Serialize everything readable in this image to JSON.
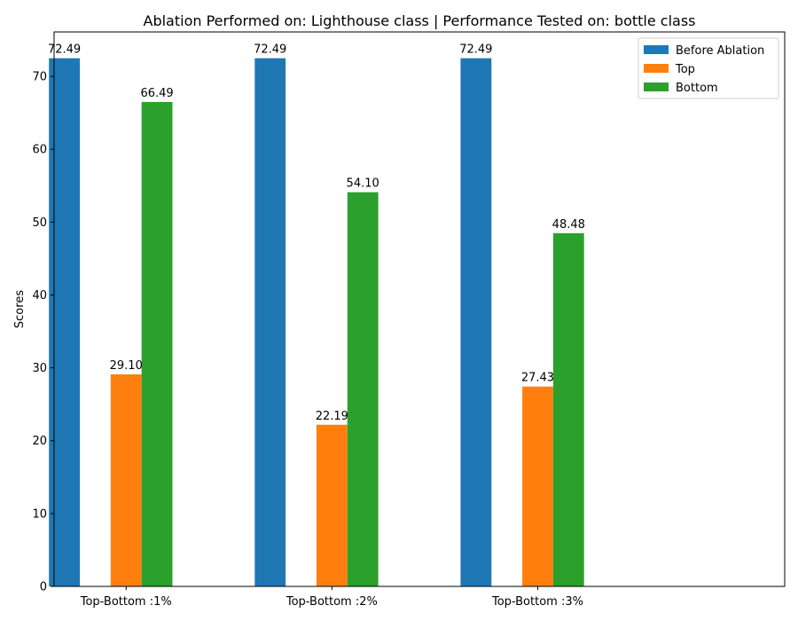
{
  "chart_data": {
    "type": "bar",
    "title": "Ablation Performed on: Lighthouse class | Performance Tested on: bottle class",
    "xlabel": "",
    "ylabel": "Scores",
    "categories": [
      "Top-Bottom :1%",
      "Top-Bottom :2%",
      "Top-Bottom :3%"
    ],
    "series": [
      {
        "name": "Before Ablation",
        "color": "#1f77b4",
        "values": [
          72.49,
          72.49,
          72.49
        ],
        "labels": [
          "72.49",
          "72.49",
          "72.49"
        ]
      },
      {
        "name": "Top",
        "color": "#ff7f0e",
        "values": [
          29.1,
          22.19,
          27.43
        ],
        "labels": [
          "29.10",
          "22.19",
          "27.43"
        ]
      },
      {
        "name": "Bottom",
        "color": "#2ca02c",
        "values": [
          66.49,
          54.1,
          48.48
        ],
        "labels": [
          "66.49",
          "54.10",
          "48.48"
        ]
      }
    ],
    "ylim": [
      0,
      76.1
    ],
    "yticks": [
      0,
      10,
      20,
      30,
      40,
      50,
      60,
      70
    ],
    "xlim": [
      -0.35,
      3.2
    ],
    "grid": false,
    "legend": "top-right"
  }
}
